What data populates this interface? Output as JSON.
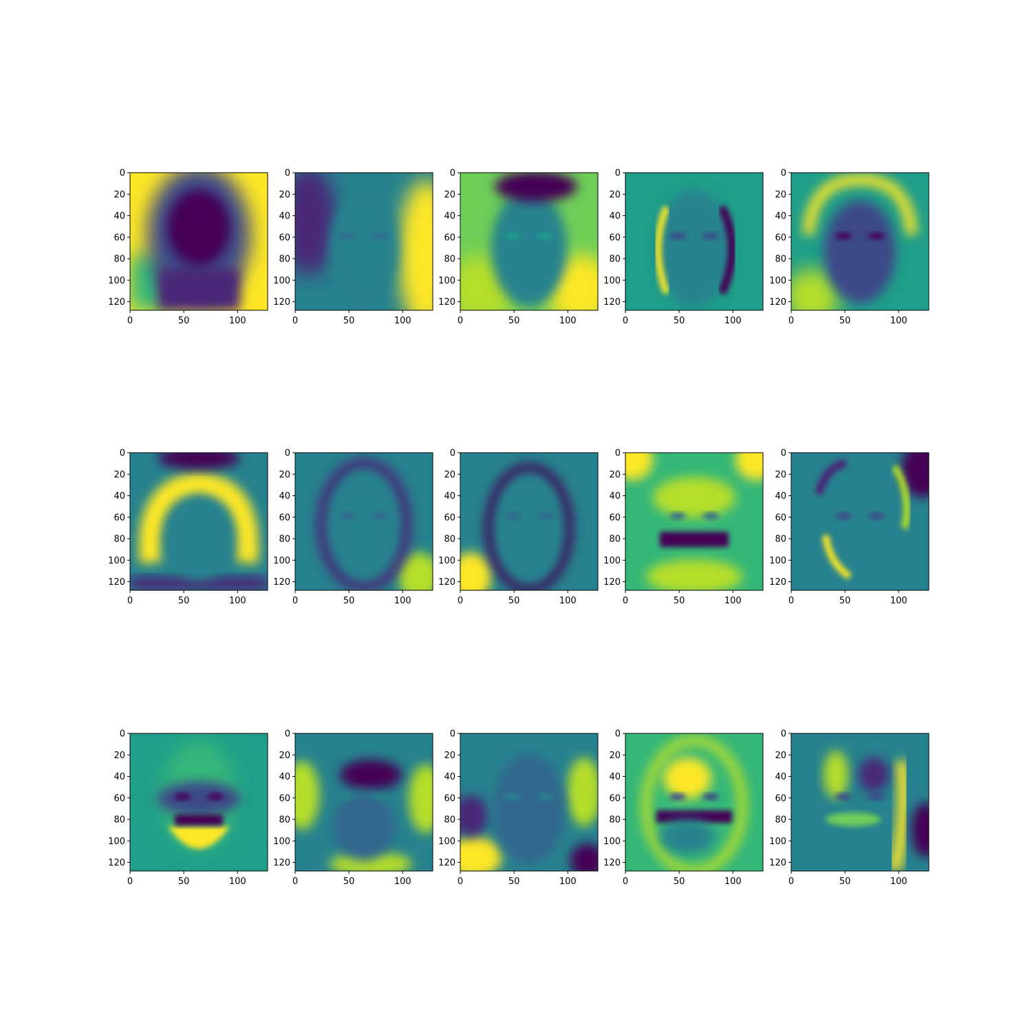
{
  "chart_data": {
    "type": "heatmap",
    "layout": {
      "rows": 3,
      "cols": 5
    },
    "colormap": "viridis",
    "image_size": [
      128,
      128
    ],
    "axes": {
      "x_ticks": [
        0,
        50,
        100
      ],
      "y_ticks": [
        0,
        20,
        40,
        60,
        80,
        100,
        120
      ],
      "xlim": [
        0,
        128
      ],
      "ylim": [
        128,
        0
      ]
    },
    "panels": [
      {
        "index": 1,
        "pattern": "mean-face: dark face on bright background"
      },
      {
        "index": 2,
        "pattern": "left dark / right bright"
      },
      {
        "index": 3,
        "pattern": "dark top cap, bright lower sides"
      },
      {
        "index": 4,
        "pattern": "bright left face edge, dark right face edge"
      },
      {
        "index": 5,
        "pattern": "bright hair arc, dark eyes"
      },
      {
        "index": 6,
        "pattern": "bright hair ring, dark top and bottom"
      },
      {
        "index": 7,
        "pattern": "dark face contour, bright bottom-right"
      },
      {
        "index": 8,
        "pattern": "dark oval contour, bright bottom-left"
      },
      {
        "index": 9,
        "pattern": "bright corners, dark mouth band"
      },
      {
        "index": 10,
        "pattern": "dark top-right, bright left cheek"
      },
      {
        "index": 11,
        "pattern": "dark eyes, bright chin crescent"
      },
      {
        "index": 12,
        "pattern": "dark forehead, bright sides"
      },
      {
        "index": 13,
        "pattern": "bright sides, dark cheeks"
      },
      {
        "index": 14,
        "pattern": "bright forehead, dark mouth band"
      },
      {
        "index": 15,
        "pattern": "bright right vertical stripe, dark right eye"
      }
    ]
  },
  "colors": {
    "viridis": [
      "#440154",
      "#482878",
      "#3e4989",
      "#31688e",
      "#26828e",
      "#1f9e89",
      "#35b779",
      "#6ece58",
      "#b5de2b",
      "#fde725"
    ]
  }
}
